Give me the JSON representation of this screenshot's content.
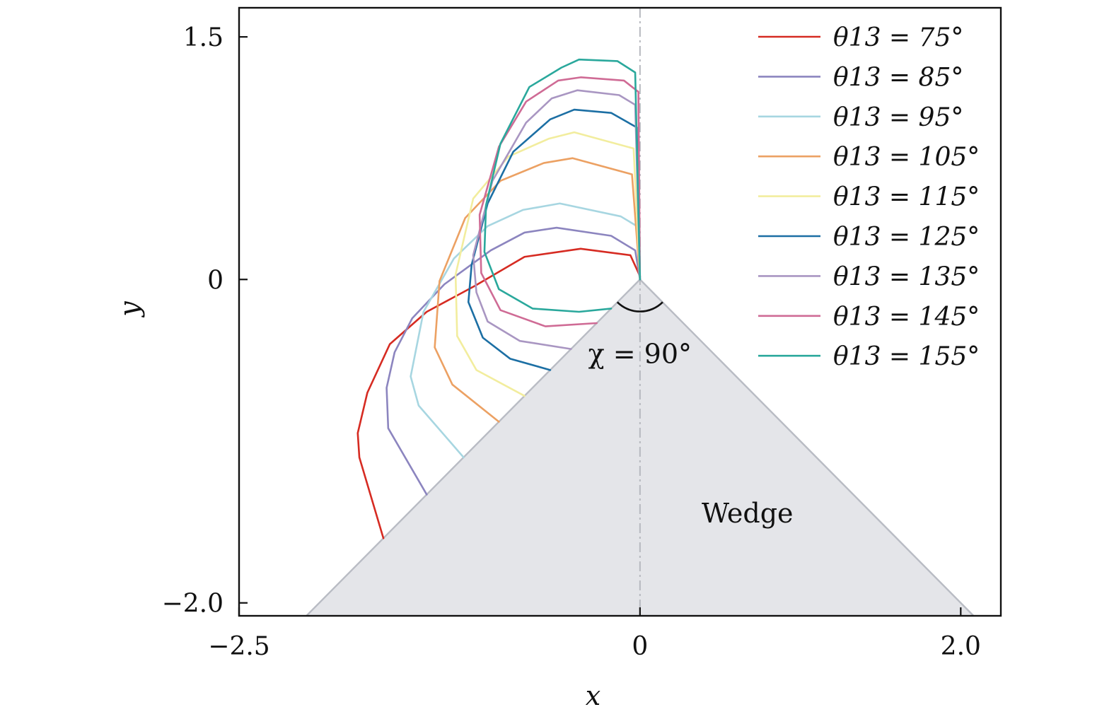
{
  "chart_data": {
    "type": "line",
    "xlabel": "x",
    "ylabel": "y",
    "xlim": [
      -2.5,
      2.25
    ],
    "ylim": [
      -2.08,
      1.68
    ],
    "x_ticks": [
      -2.5,
      0,
      2.0
    ],
    "x_tick_labels": [
      "−2.5",
      "0",
      "2.0"
    ],
    "y_ticks": [
      1.5,
      0,
      -2.0
    ],
    "y_tick_labels": [
      "1.5",
      "0",
      "−2.0"
    ],
    "legend_placement": "top-right",
    "symmetry_line_x": 0,
    "wedge": {
      "label": "Wedge",
      "label_pos": [
        0.67,
        -1.45
      ],
      "vertex": [
        0,
        0
      ],
      "half_angle_deg": 45,
      "fill": "#e4e5e9",
      "edge": "#b9bcc4"
    },
    "angle_annotation": {
      "text": "χ = 90°",
      "at": [
        0,
        0
      ],
      "radius": 0.2
    },
    "series": [
      {
        "name": "θ13 = 75°",
        "color": "#d62b22",
        "x": [
          -1.6,
          -1.75,
          -1.76,
          -1.7,
          -1.56,
          -1.33,
          -1.03,
          -0.72,
          -0.37,
          -0.06,
          0.0
        ],
        "y": [
          -1.6,
          -1.1,
          -0.95,
          -0.7,
          -0.4,
          -0.2,
          -0.04,
          0.14,
          0.19,
          0.15,
          0.02
        ]
      },
      {
        "name": "θ13 = 85°",
        "color": "#8c85bf",
        "x": [
          -1.33,
          -1.57,
          -1.58,
          -1.53,
          -1.42,
          -1.22,
          -0.93,
          -0.72,
          -0.52,
          -0.18,
          -0.03,
          0.0
        ],
        "y": [
          -1.33,
          -0.92,
          -0.67,
          -0.45,
          -0.24,
          -0.03,
          0.18,
          0.29,
          0.32,
          0.27,
          0.18,
          0.0
        ]
      },
      {
        "name": "θ13 = 95°",
        "color": "#a7d6e1",
        "x": [
          -1.1,
          -1.38,
          -1.43,
          -1.35,
          -1.16,
          -0.95,
          -0.73,
          -0.5,
          -0.12,
          -0.02,
          0.0
        ],
        "y": [
          -1.1,
          -0.78,
          -0.6,
          -0.2,
          0.13,
          0.33,
          0.43,
          0.47,
          0.39,
          0.33,
          0.0
        ]
      },
      {
        "name": "θ13 = 105°",
        "color": "#eca163",
        "x": [
          -0.88,
          -1.17,
          -1.28,
          -1.25,
          -1.09,
          -0.87,
          -0.6,
          -0.42,
          -0.05,
          0.0
        ],
        "y": [
          -0.88,
          -0.65,
          -0.42,
          -0.01,
          0.38,
          0.61,
          0.72,
          0.75,
          0.65,
          0.0
        ]
      },
      {
        "name": "θ13 = 115°",
        "color": "#f2ed9e",
        "x": [
          -0.72,
          -1.02,
          -1.14,
          -1.15,
          -1.04,
          -0.82,
          -0.57,
          -0.41,
          -0.04,
          0.0
        ],
        "y": [
          -0.72,
          -0.56,
          -0.35,
          0.03,
          0.5,
          0.76,
          0.87,
          0.91,
          0.81,
          0.0
        ]
      },
      {
        "name": "θ13 = 125°",
        "color": "#1c6fa4",
        "x": [
          -0.56,
          -0.81,
          -0.98,
          -1.07,
          -1.05,
          -0.95,
          -0.79,
          -0.56,
          -0.41,
          -0.18,
          -0.02,
          0.0
        ],
        "y": [
          -0.56,
          -0.49,
          -0.36,
          -0.14,
          0.09,
          0.47,
          0.79,
          0.99,
          1.05,
          1.03,
          0.94,
          0.0
        ]
      },
      {
        "name": "θ13 = 135°",
        "color": "#a996c2",
        "x": [
          -0.43,
          -0.75,
          -0.95,
          -1.02,
          -1.04,
          -0.92,
          -0.71,
          -0.55,
          -0.39,
          -0.13,
          -0.03,
          0.0
        ],
        "y": [
          -0.43,
          -0.38,
          -0.26,
          -0.08,
          0.15,
          0.61,
          0.97,
          1.12,
          1.17,
          1.14,
          1.08,
          0.0
        ]
      },
      {
        "name": "θ13 = 145°",
        "color": "#cf6b95",
        "x": [
          -0.27,
          -0.59,
          -0.87,
          -0.99,
          -1.0,
          -0.88,
          -0.71,
          -0.51,
          -0.37,
          -0.1,
          -0.01,
          0.0
        ],
        "y": [
          -0.27,
          -0.29,
          -0.19,
          0.04,
          0.4,
          0.82,
          1.1,
          1.23,
          1.25,
          1.23,
          1.16,
          0.0
        ]
      },
      {
        "name": "θ13 = 155°",
        "color": "#2aa89c",
        "x": [
          -0.18,
          -0.38,
          -0.67,
          -0.88,
          -0.97,
          -0.96,
          -0.87,
          -0.69,
          -0.49,
          -0.38,
          -0.14,
          -0.03,
          0.0
        ],
        "y": [
          -0.18,
          -0.2,
          -0.18,
          -0.06,
          0.17,
          0.46,
          0.84,
          1.19,
          1.31,
          1.36,
          1.35,
          1.28,
          0.0
        ]
      }
    ]
  }
}
